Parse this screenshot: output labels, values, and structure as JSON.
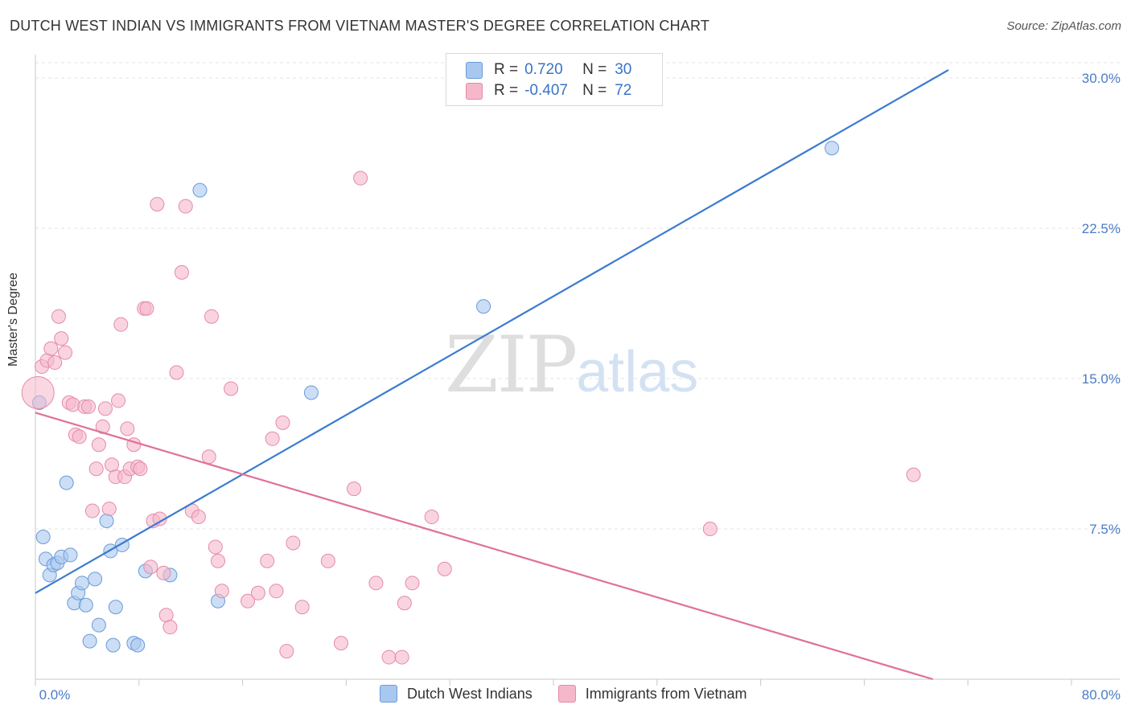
{
  "header": {
    "title": "DUTCH WEST INDIAN VS IMMIGRANTS FROM VIETNAM MASTER'S DEGREE CORRELATION CHART",
    "source": "Source: ZipAtlas.com"
  },
  "watermark": {
    "zip": "ZIP",
    "atlas": "atlas"
  },
  "legend": {
    "rows": [
      {
        "r_label": "R =",
        "r_value": "0.720",
        "n_label": "N =",
        "n_value": "30",
        "color": "#a9c8f0"
      },
      {
        "r_label": "R =",
        "r_value": "-0.407",
        "n_label": "N =",
        "n_value": "72",
        "color": "#f5b8cb"
      }
    ]
  },
  "bottom_legend": [
    {
      "label": "Dutch West Indians",
      "color": "#a9c8f0"
    },
    {
      "label": "Immigrants from Vietnam",
      "color": "#f5b8cb"
    }
  ],
  "chart_data": {
    "type": "scatter",
    "ylabel": "Master's Degree",
    "xlim": [
      0,
      80
    ],
    "ylim": [
      0,
      30
    ],
    "x_tick_labels": [
      "0.0%",
      "80.0%"
    ],
    "y_tick_values": [
      7.5,
      15.0,
      22.5,
      30.0
    ],
    "y_tick_labels": [
      "7.5%",
      "15.0%",
      "22.5%",
      "30.0%"
    ],
    "grid": "horizontal dashed",
    "series": [
      {
        "name": "Dutch West Indians",
        "color": "#a9c8f0",
        "stroke": "#6a9bd8",
        "trend": {
          "x": [
            0,
            70.5
          ],
          "y": [
            4.3,
            30.4
          ],
          "color": "#3c7bd0"
        },
        "points": [
          [
            0.3,
            13.8
          ],
          [
            0.6,
            7.1
          ],
          [
            0.8,
            6.0
          ],
          [
            1.1,
            5.2
          ],
          [
            1.4,
            5.7
          ],
          [
            1.7,
            5.8
          ],
          [
            2.0,
            6.1
          ],
          [
            2.4,
            9.8
          ],
          [
            2.7,
            6.2
          ],
          [
            3.0,
            3.8
          ],
          [
            3.3,
            4.3
          ],
          [
            3.6,
            4.8
          ],
          [
            3.9,
            3.7
          ],
          [
            4.2,
            1.9
          ],
          [
            4.6,
            5.0
          ],
          [
            4.9,
            2.7
          ],
          [
            5.5,
            7.9
          ],
          [
            5.8,
            6.4
          ],
          [
            6.0,
            1.7
          ],
          [
            6.2,
            3.6
          ],
          [
            6.7,
            6.7
          ],
          [
            7.6,
            1.8
          ],
          [
            7.9,
            1.7
          ],
          [
            8.5,
            5.4
          ],
          [
            10.4,
            5.2
          ],
          [
            12.7,
            24.4
          ],
          [
            14.1,
            3.9
          ],
          [
            21.3,
            14.3
          ],
          [
            34.6,
            18.6
          ],
          [
            61.5,
            26.5
          ]
        ]
      },
      {
        "name": "Immigrants from Vietnam",
        "color": "#f5b8cb",
        "stroke": "#e58aa8",
        "trend": {
          "x": [
            0,
            69.3
          ],
          "y": [
            13.3,
            0
          ],
          "color": "#e0709a"
        },
        "points": [
          [
            0.2,
            14.3
          ],
          [
            0.5,
            15.6
          ],
          [
            0.9,
            15.9
          ],
          [
            1.2,
            16.5
          ],
          [
            1.5,
            15.8
          ],
          [
            1.8,
            18.1
          ],
          [
            2.0,
            17.0
          ],
          [
            2.3,
            16.3
          ],
          [
            2.6,
            13.8
          ],
          [
            2.9,
            13.7
          ],
          [
            3.1,
            12.2
          ],
          [
            3.4,
            12.1
          ],
          [
            3.8,
            13.6
          ],
          [
            4.1,
            13.6
          ],
          [
            4.4,
            8.4
          ],
          [
            4.7,
            10.5
          ],
          [
            4.9,
            11.7
          ],
          [
            5.2,
            12.6
          ],
          [
            5.4,
            13.5
          ],
          [
            5.7,
            8.5
          ],
          [
            5.9,
            10.7
          ],
          [
            6.2,
            10.1
          ],
          [
            6.4,
            13.9
          ],
          [
            6.6,
            17.7
          ],
          [
            6.9,
            10.1
          ],
          [
            7.1,
            12.5
          ],
          [
            7.3,
            10.5
          ],
          [
            7.6,
            11.7
          ],
          [
            7.9,
            10.6
          ],
          [
            8.1,
            10.5
          ],
          [
            8.4,
            18.5
          ],
          [
            8.6,
            18.5
          ],
          [
            8.9,
            5.6
          ],
          [
            9.1,
            7.9
          ],
          [
            9.4,
            23.7
          ],
          [
            9.6,
            8.0
          ],
          [
            9.9,
            5.3
          ],
          [
            10.1,
            3.2
          ],
          [
            10.4,
            2.6
          ],
          [
            10.9,
            15.3
          ],
          [
            11.3,
            20.3
          ],
          [
            11.6,
            23.6
          ],
          [
            12.1,
            8.4
          ],
          [
            12.6,
            8.1
          ],
          [
            13.4,
            11.1
          ],
          [
            13.6,
            18.1
          ],
          [
            13.9,
            6.6
          ],
          [
            14.1,
            5.9
          ],
          [
            14.4,
            4.4
          ],
          [
            15.1,
            14.5
          ],
          [
            16.4,
            3.9
          ],
          [
            17.2,
            4.3
          ],
          [
            17.9,
            5.9
          ],
          [
            18.3,
            12.0
          ],
          [
            18.6,
            4.4
          ],
          [
            19.1,
            12.8
          ],
          [
            19.4,
            1.4
          ],
          [
            19.9,
            6.8
          ],
          [
            20.6,
            3.6
          ],
          [
            22.6,
            5.9
          ],
          [
            23.6,
            1.8
          ],
          [
            24.6,
            9.5
          ],
          [
            25.1,
            25.0
          ],
          [
            26.3,
            4.8
          ],
          [
            27.3,
            1.1
          ],
          [
            28.3,
            1.1
          ],
          [
            28.5,
            3.8
          ],
          [
            29.1,
            4.8
          ],
          [
            30.6,
            8.1
          ],
          [
            31.6,
            5.5
          ],
          [
            52.1,
            7.5
          ],
          [
            67.8,
            10.2
          ]
        ]
      }
    ]
  }
}
